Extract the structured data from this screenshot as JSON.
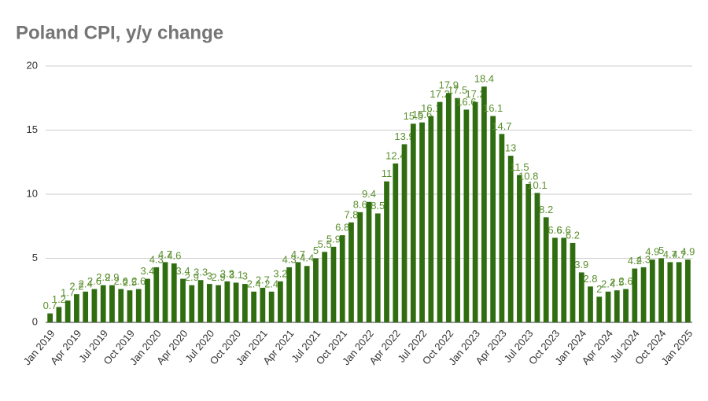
{
  "chart_data": {
    "type": "bar",
    "title": "Poland CPI, y/y change",
    "categories": [
      "Jan 2019",
      null,
      null,
      "Apr 2019",
      null,
      null,
      "Jul 2019",
      null,
      null,
      "Oct 2019",
      null,
      null,
      "Jan 2020",
      null,
      null,
      "Apr 2020",
      null,
      null,
      "Jul 2020",
      null,
      null,
      "Oct 2020",
      null,
      null,
      "Jan 2021",
      null,
      null,
      "Apr 2021",
      null,
      null,
      "Jul 2021",
      null,
      null,
      "Oct 2021",
      null,
      null,
      "Jan 2022",
      null,
      null,
      "Apr 2022",
      null,
      null,
      "Jul 2022",
      null,
      null,
      "Oct 2022",
      null,
      null,
      "Jan 2023",
      null,
      null,
      "Apr 2023",
      null,
      null,
      "Jul 2023",
      null,
      null,
      "Oct 2023",
      null,
      null,
      "Jan 2024",
      null,
      null,
      "Apr 2024",
      null,
      null,
      "Jul 2024",
      null,
      null,
      "Oct 2024",
      null,
      null,
      "Jan 2025"
    ],
    "values": [
      0.7,
      1.2,
      1.7,
      2.2,
      2.4,
      2.6,
      2.9,
      2.9,
      2.6,
      2.5,
      2.6,
      3.4,
      4.3,
      4.7,
      4.6,
      3.4,
      2.9,
      3.3,
      3,
      2.9,
      3.2,
      3.1,
      3,
      2.4,
      2.7,
      2.4,
      3.2,
      4.3,
      4.7,
      4.4,
      5,
      5.5,
      5.9,
      6.8,
      7.8,
      8.6,
      9.4,
      8.5,
      11,
      12.4,
      13.9,
      15.5,
      15.6,
      16.1,
      17.2,
      17.9,
      17.5,
      16.6,
      17.2,
      18.4,
      16.1,
      14.7,
      13,
      11.5,
      10.8,
      10.1,
      8.2,
      6.6,
      6.6,
      6.2,
      3.9,
      2.8,
      2,
      2.4,
      2.5,
      2.6,
      4.2,
      4.3,
      4.9,
      5,
      4.7,
      4.7,
      4.9
    ],
    "color": "#2f6d10",
    "label_color": "#5b8f2e",
    "ylim": [
      0,
      20
    ],
    "yticks": [
      0,
      5,
      10,
      15,
      20
    ],
    "grid": true
  }
}
